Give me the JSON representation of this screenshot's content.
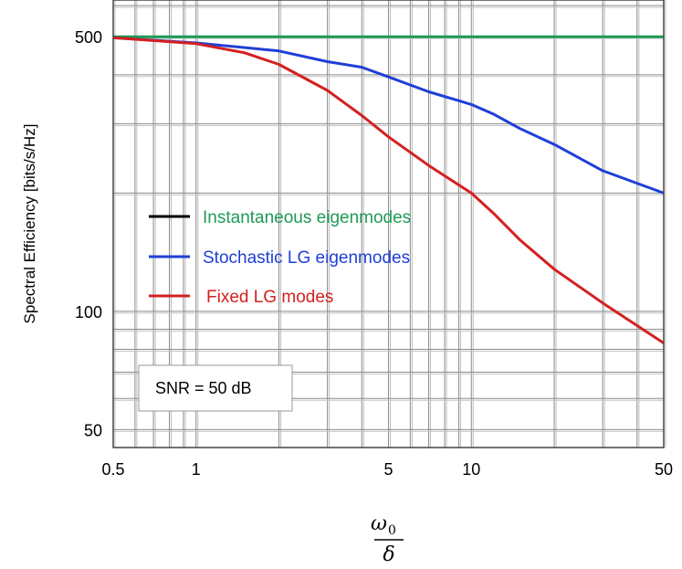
{
  "chart_data": {
    "type": "line",
    "title": "",
    "ylabel": "Spectral Efficiency [bits/s/Hz]",
    "xlabel": {
      "numerator": "ω",
      "numerator_sub": "0",
      "denominator": "δ"
    },
    "xscale": "log",
    "yscale": "log",
    "xlim": [
      0.5,
      50
    ],
    "ylim": [
      45,
      620
    ],
    "grid": true,
    "xticks": [
      0.5,
      1,
      5,
      10,
      50
    ],
    "xtick_labels": [
      "0.5",
      "1",
      "5",
      "10",
      "50"
    ],
    "yticks": [
      50,
      100,
      500
    ],
    "ytick_labels": [
      "50",
      "100",
      "500"
    ],
    "legend_position": "center-left",
    "series": [
      {
        "name": "Instantaneous eigenmodes",
        "color": "#1f9a55",
        "x": [
          0.5,
          1,
          2,
          5,
          10,
          20,
          50
        ],
        "y": [
          500,
          500,
          500,
          500,
          500,
          500,
          500
        ]
      },
      {
        "name": "Stochastic LG eigenmodes",
        "color": "#1f3fd6",
        "x": [
          0.5,
          1,
          2,
          3,
          4,
          5,
          7,
          10,
          12,
          15,
          20,
          30,
          50
        ],
        "y": [
          497,
          482,
          460,
          432,
          418,
          395,
          362,
          336,
          318,
          292,
          266,
          228,
          200
        ]
      },
      {
        "name": "Fixed LG modes",
        "color": "#d42020",
        "x": [
          0.5,
          1,
          1.5,
          2,
          3,
          4,
          5,
          7,
          10,
          12,
          15,
          20,
          30,
          50
        ],
        "y": [
          497,
          480,
          455,
          425,
          365,
          315,
          278,
          235,
          200,
          178,
          152,
          128,
          105,
          83
        ]
      }
    ],
    "annotation": "SNR = 50 dB"
  },
  "legend_line_color": "#000000"
}
